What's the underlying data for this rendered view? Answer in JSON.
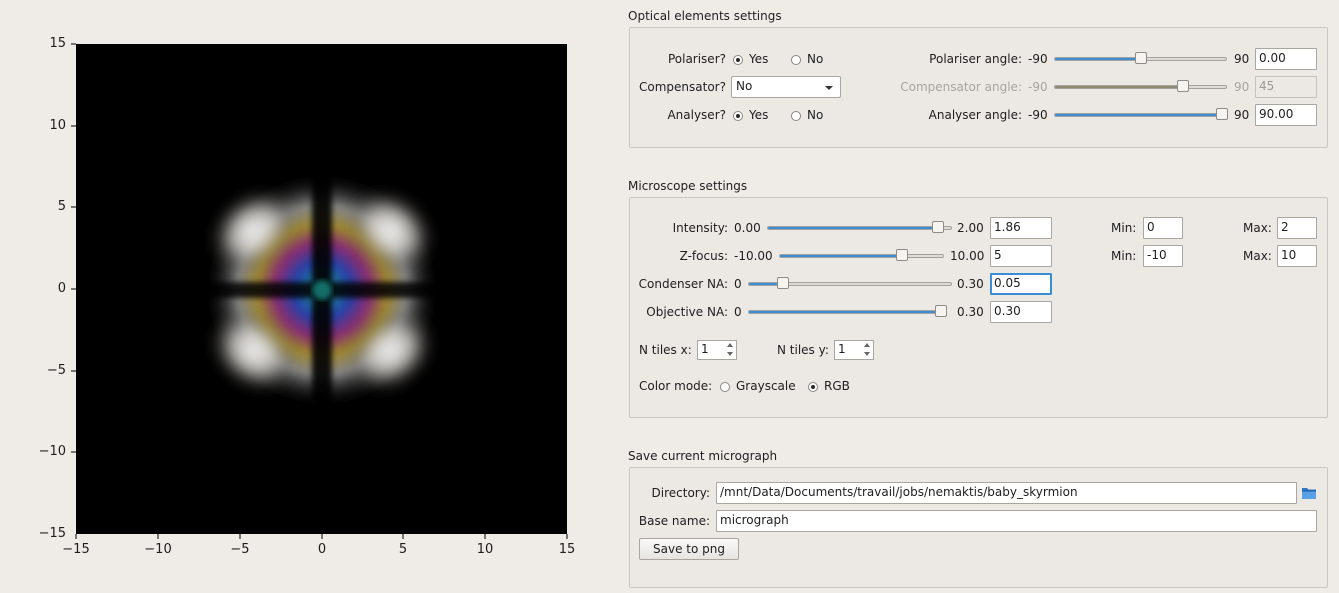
{
  "plot": {
    "x_ticks": [
      "−15",
      "−10",
      "−5",
      "0",
      "5",
      "10",
      "15"
    ],
    "y_ticks": [
      "15",
      "10",
      "5",
      "0",
      "−5",
      "−10",
      "−15"
    ]
  },
  "optical": {
    "title": "Optical elements settings",
    "polariser_label": "Polariser?",
    "polariser_yes": "Yes",
    "polariser_no": "No",
    "compensator_label": "Compensator?",
    "compensator_value": "No",
    "analyser_label": "Analyser?",
    "analyser_yes": "Yes",
    "analyser_no": "No",
    "polariser_angle_label": "Polariser angle:",
    "polariser_angle_min": "-90",
    "polariser_angle_max": "90",
    "polariser_angle_value": "0.00",
    "polariser_angle_fraction": 0.5,
    "compensator_angle_label": "Compensator angle:",
    "compensator_angle_min": "-90",
    "compensator_angle_max": "90",
    "compensator_angle_value": "45",
    "compensator_angle_fraction": 0.75,
    "analyser_angle_label": "Analyser angle:",
    "analyser_angle_min": "-90",
    "analyser_angle_max": "90",
    "analyser_angle_value": "90.00",
    "analyser_angle_fraction": 1.0
  },
  "microscope": {
    "title": "Microscope settings",
    "intensity_label": "Intensity:",
    "intensity_min": "0.00",
    "intensity_max": "2.00",
    "intensity_value": "1.86",
    "intensity_fraction": 0.93,
    "intensity_min_label": "Min:",
    "intensity_min_value": "0",
    "intensity_max_label": "Max:",
    "intensity_max_value": "2",
    "zfocus_label": "Z-focus:",
    "zfocus_min": "-10.00",
    "zfocus_max": "10.00",
    "zfocus_value": "5",
    "zfocus_fraction": 0.75,
    "zfocus_min_label": "Min:",
    "zfocus_min_value": "-10",
    "zfocus_max_label": "Max:",
    "zfocus_max_value": "10",
    "condenser_label": "Condenser NA:",
    "condenser_min": "0",
    "condenser_max": "0.30",
    "condenser_value": "0.05",
    "condenser_fraction": 0.167,
    "objective_label": "Objective NA:",
    "objective_min": "0",
    "objective_max": "0.30",
    "objective_value": "0.30",
    "objective_fraction": 1.0,
    "ntiles_x_label": "N tiles x:",
    "ntiles_x_value": "1",
    "ntiles_y_label": "N tiles y:",
    "ntiles_y_value": "1",
    "color_mode_label": "Color mode:",
    "grayscale_label": "Grayscale",
    "rgb_label": "RGB"
  },
  "save": {
    "title": "Save current micrograph",
    "directory_label": "Directory:",
    "directory_value": "/mnt/Data/Documents/travail/jobs/nemaktis/baby_skyrmion",
    "basename_label": "Base name:",
    "basename_value": "micrograph",
    "save_button": "Save to png"
  },
  "icons": {
    "folder": "folder-open-icon"
  },
  "colors": {
    "accent": "#3c8ed4",
    "folder": "#2f78c8"
  }
}
